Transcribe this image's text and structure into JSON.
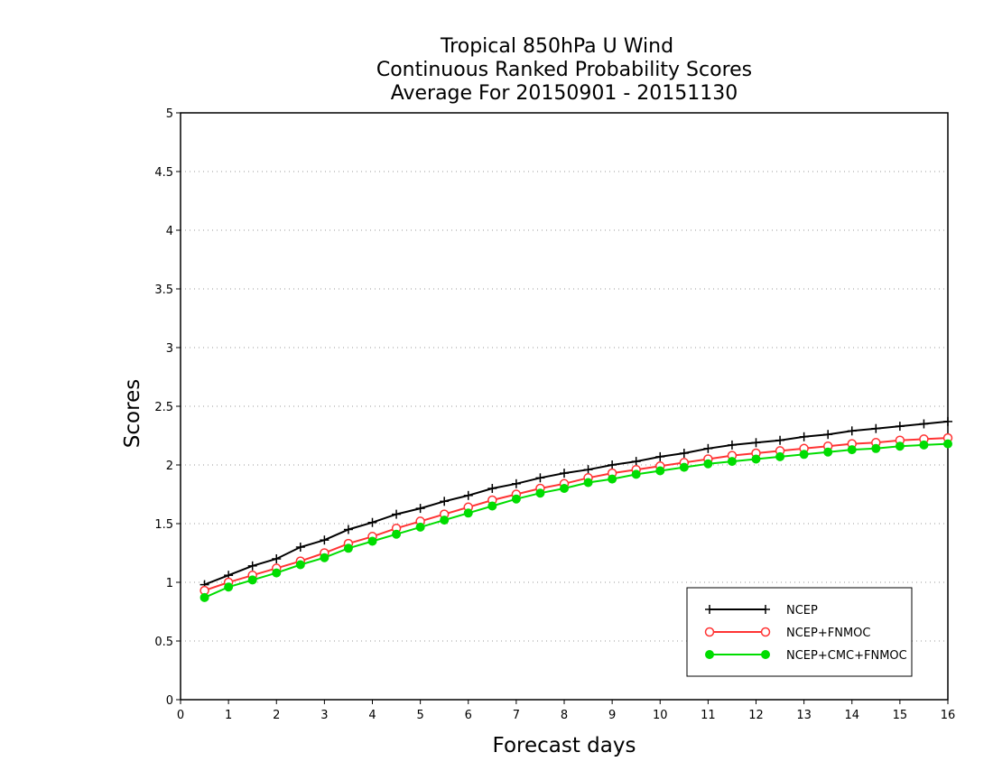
{
  "chart_data": {
    "type": "line",
    "title_lines": [
      "Tropical 850hPa U Wind",
      "Continuous Ranked Probability Scores",
      "Average For 20150901 - 20151130"
    ],
    "xlabel": "Forecast days",
    "ylabel": "Scores",
    "xlim": [
      0,
      16
    ],
    "ylim": [
      0,
      5
    ],
    "x_ticks": [
      "0",
      "1",
      "2",
      "3",
      "4",
      "5",
      "6",
      "7",
      "8",
      "9",
      "10",
      "11",
      "12",
      "13",
      "14",
      "15",
      "16"
    ],
    "y_ticks": [
      "0",
      "0.5",
      "1",
      "1.5",
      "2",
      "2.5",
      "3",
      "3.5",
      "4",
      "4.5",
      "5"
    ],
    "grid": "horizontal dotted",
    "legend_position": "bottom-right",
    "x": [
      0.5,
      1,
      1.5,
      2,
      2.5,
      3,
      3.5,
      4,
      4.5,
      5,
      5.5,
      6,
      6.5,
      7,
      7.5,
      8,
      8.5,
      9,
      9.5,
      10,
      10.5,
      11,
      11.5,
      12,
      12.5,
      13,
      13.5,
      14,
      14.5,
      15,
      15.5,
      16
    ],
    "series": [
      {
        "name": "NCEP",
        "color": "#000000",
        "marker": "plus",
        "values": [
          0.98,
          1.06,
          1.14,
          1.2,
          1.3,
          1.36,
          1.45,
          1.51,
          1.58,
          1.63,
          1.69,
          1.74,
          1.8,
          1.84,
          1.89,
          1.93,
          1.96,
          2.0,
          2.03,
          2.07,
          2.1,
          2.14,
          2.17,
          2.19,
          2.21,
          2.24,
          2.26,
          2.29,
          2.31,
          2.33,
          2.35,
          2.37
        ]
      },
      {
        "name": "NCEP+FNMOC",
        "color": "#ff3333",
        "marker": "open-circle",
        "values": [
          0.93,
          1.0,
          1.06,
          1.12,
          1.18,
          1.25,
          1.33,
          1.39,
          1.46,
          1.52,
          1.58,
          1.64,
          1.7,
          1.75,
          1.8,
          1.84,
          1.89,
          1.93,
          1.96,
          1.99,
          2.02,
          2.05,
          2.08,
          2.1,
          2.12,
          2.14,
          2.16,
          2.18,
          2.19,
          2.21,
          2.22,
          2.23
        ]
      },
      {
        "name": "NCEP+CMC+FNMOC",
        "color": "#00dd00",
        "marker": "filled-circle",
        "values": [
          0.87,
          0.96,
          1.02,
          1.08,
          1.15,
          1.21,
          1.29,
          1.35,
          1.41,
          1.47,
          1.53,
          1.59,
          1.65,
          1.71,
          1.76,
          1.8,
          1.85,
          1.88,
          1.92,
          1.95,
          1.98,
          2.01,
          2.03,
          2.05,
          2.07,
          2.09,
          2.11,
          2.13,
          2.14,
          2.16,
          2.17,
          2.18
        ]
      }
    ]
  }
}
